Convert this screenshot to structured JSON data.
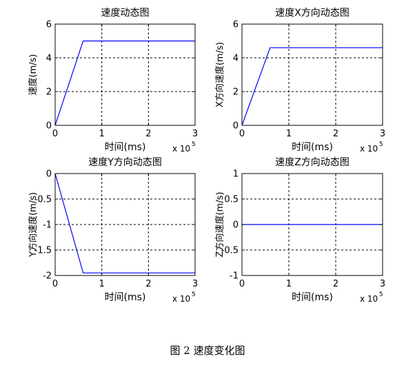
{
  "figure_caption": "图 2  速度变化图",
  "chart_data": [
    {
      "type": "line",
      "title": "速度动态图",
      "xlabel": "时间(ms)",
      "ylabel": "速度(m/s)",
      "x_exponent_label": "x 10",
      "x_exponent": "5",
      "xlim": [
        0,
        3
      ],
      "ylim": [
        0,
        6
      ],
      "xticks": [
        "0",
        "1",
        "2",
        "3"
      ],
      "yticks": [
        "0",
        "2",
        "4",
        "6"
      ],
      "grid": true,
      "color": "#0000ff",
      "x": [
        0,
        0.6,
        3
      ],
      "y": [
        0,
        5,
        5
      ]
    },
    {
      "type": "line",
      "title": "速度X方向动态图",
      "xlabel": "时间(ms)",
      "ylabel": "X方向速度(m/s)",
      "x_exponent_label": "x 10",
      "x_exponent": "5",
      "xlim": [
        0,
        3
      ],
      "ylim": [
        0,
        6
      ],
      "xticks": [
        "0",
        "1",
        "2",
        "3"
      ],
      "yticks": [
        "0",
        "2",
        "4",
        "6"
      ],
      "grid": true,
      "color": "#0000ff",
      "x": [
        0,
        0.6,
        3
      ],
      "y": [
        0,
        4.6,
        4.6
      ]
    },
    {
      "type": "line",
      "title": "速度Y方向动态图",
      "xlabel": "时间(ms)",
      "ylabel": "Y方向速度(m/s)",
      "x_exponent_label": "x 10",
      "x_exponent": "5",
      "xlim": [
        0,
        3
      ],
      "ylim": [
        -2,
        0
      ],
      "xticks": [
        "0",
        "1",
        "2",
        "3"
      ],
      "yticks": [
        "-2",
        "-1.5",
        "-1",
        "-0.5",
        "0"
      ],
      "grid": true,
      "color": "#0000ff",
      "x": [
        0,
        0.6,
        3
      ],
      "y": [
        0,
        -1.95,
        -1.95
      ]
    },
    {
      "type": "line",
      "title": "速度Z方向动态图",
      "xlabel": "时间(ms)",
      "ylabel": "Z方向速度(m/s)",
      "x_exponent_label": "x 10",
      "x_exponent": "5",
      "xlim": [
        0,
        3
      ],
      "ylim": [
        -1,
        1
      ],
      "xticks": [
        "0",
        "1",
        "2",
        "3"
      ],
      "yticks": [
        "-1",
        "-0.5",
        "0",
        "0.5",
        "1"
      ],
      "grid": true,
      "color": "#0000ff",
      "x": [
        0,
        3
      ],
      "y": [
        0,
        0
      ]
    }
  ]
}
